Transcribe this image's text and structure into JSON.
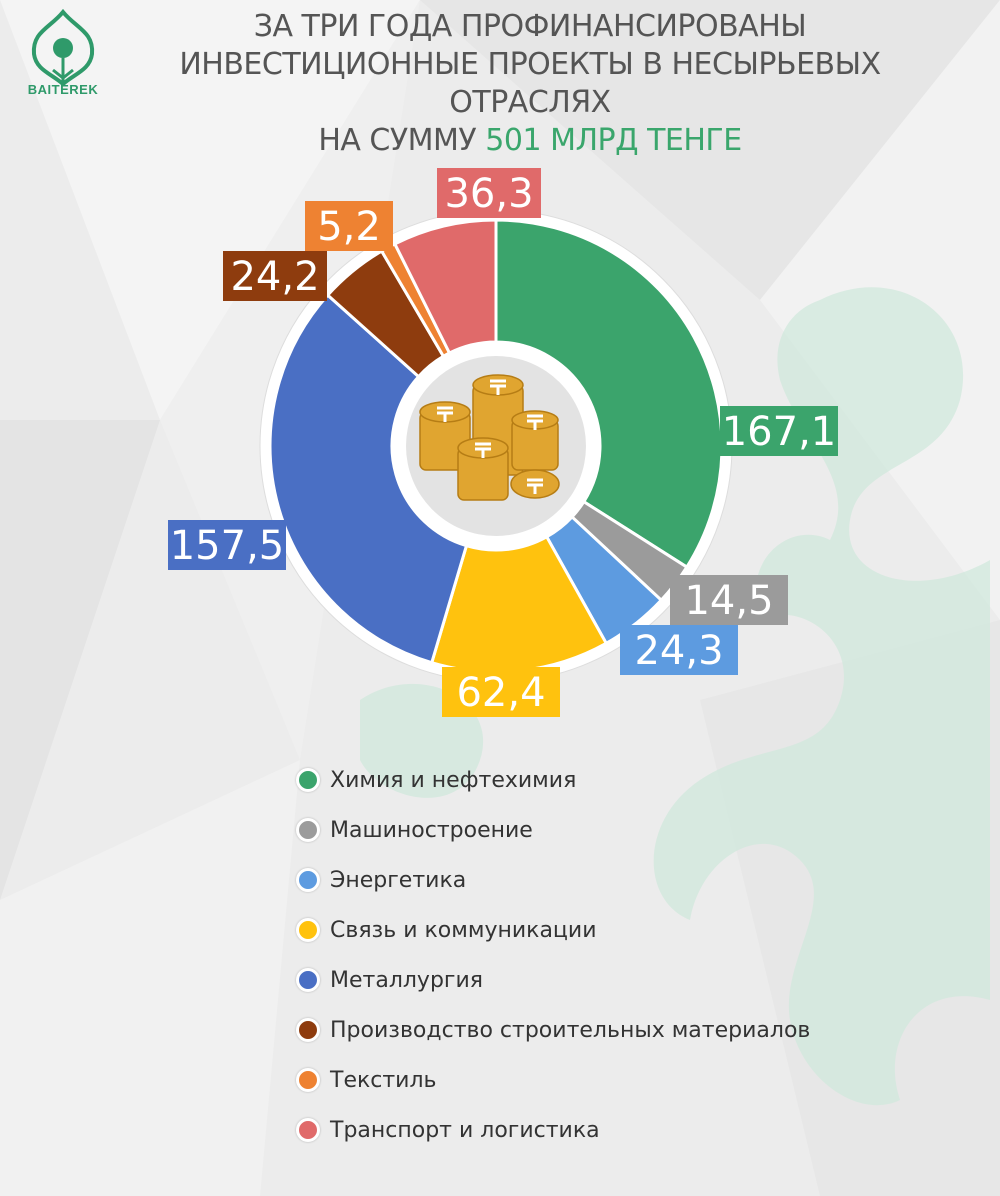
{
  "header": {
    "logo_text": "BAITEREK",
    "title_line1": "ЗА ТРИ ГОДА ПРОФИНАНСИРОВАНЫ",
    "title_line2": "ИНВЕСТИЦИОННЫЕ ПРОЕКТЫ В НЕСЫРЬЕВЫХ ОТРАСЛЯХ",
    "title_line3_prefix": "НА СУММУ",
    "title_line3_accent": "501 МЛРД ТЕНГЕ"
  },
  "chart_data": {
    "type": "pie",
    "style": "donut",
    "center_icon": "tenge-coins-icon",
    "categories": [
      "Химия и нефтехимия",
      "Машиностроение",
      "Энергетика",
      "Связь и коммуникации",
      "Металлургия",
      "Производство строительных материалов",
      "Текстиль",
      "Транспорт и логистика"
    ],
    "values": [
      167.1,
      14.5,
      24.3,
      62.4,
      157.5,
      24.2,
      5.2,
      36.3
    ],
    "value_labels": [
      "167,1",
      "14,5",
      "24,3",
      "62,4",
      "157,5",
      "24,2",
      "5,2",
      "36,3"
    ],
    "colors": [
      "#3ba46c",
      "#9b9b9b",
      "#5d9be0",
      "#ffc20e",
      "#4a6fc4",
      "#8e3c0e",
      "#ee8232",
      "#e06a6a"
    ],
    "legend_placement": "bottom"
  }
}
